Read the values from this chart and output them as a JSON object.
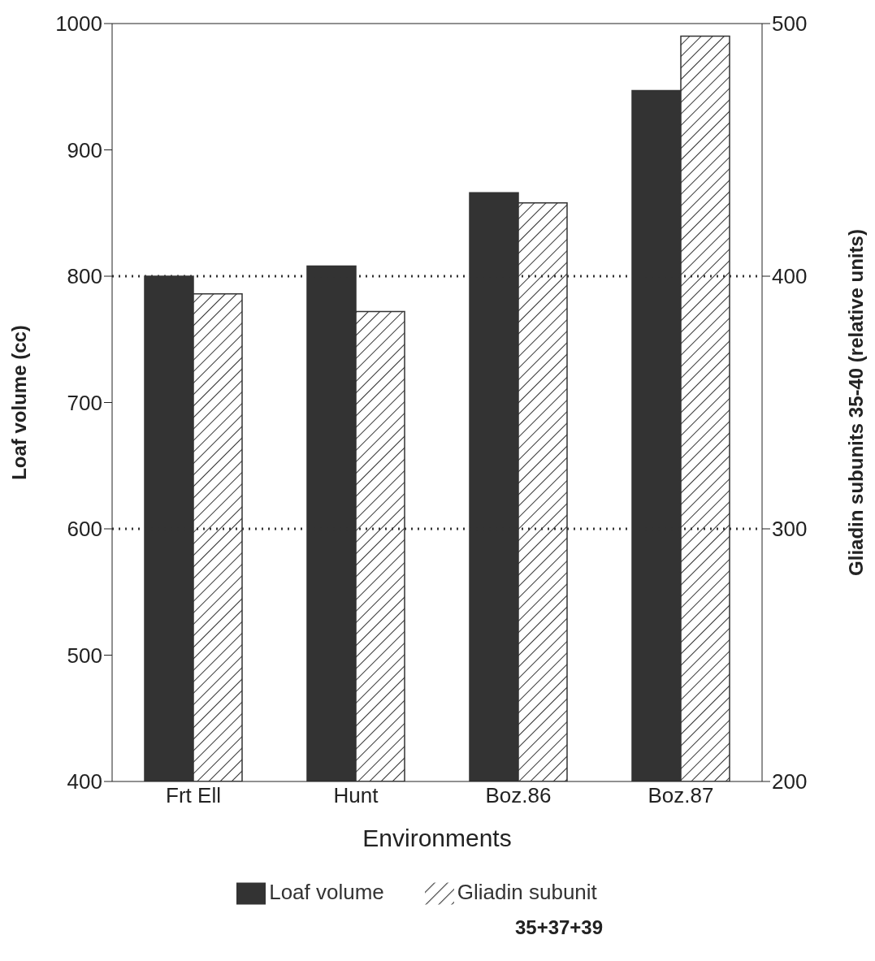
{
  "chart_data": {
    "type": "bar",
    "xlabel": "Environments",
    "ylabel": "Loaf volume (cc)",
    "y2label": "Gliadin subunits 35-40 (relative units)",
    "categories": [
      "Frt Ell",
      "Hunt",
      "Boz.86",
      "Boz.87"
    ],
    "series": [
      {
        "name": "Loaf volume",
        "color": "#333333",
        "values": [
          800,
          808,
          866,
          947
        ]
      },
      {
        "name": "Gliadin subunit",
        "color": "#333333",
        "axis": "y2",
        "values": [
          393,
          386,
          429,
          495
        ]
      }
    ],
    "ylim": [
      400,
      1000
    ],
    "yticks": [
      400,
      500,
      600,
      700,
      800,
      900,
      1000
    ],
    "y2lim": [
      200,
      500
    ],
    "y2ticks": [
      200,
      300,
      400,
      500
    ],
    "ref_lines": [
      {
        "axis": "y",
        "value": 600,
        "line_style": "dotted",
        "color": "#333333"
      },
      {
        "axis": "y",
        "value": 800,
        "line_style": "dotted",
        "color": "#333333"
      }
    ],
    "legend": "bottom",
    "annotations": [
      "35+37+39"
    ]
  }
}
